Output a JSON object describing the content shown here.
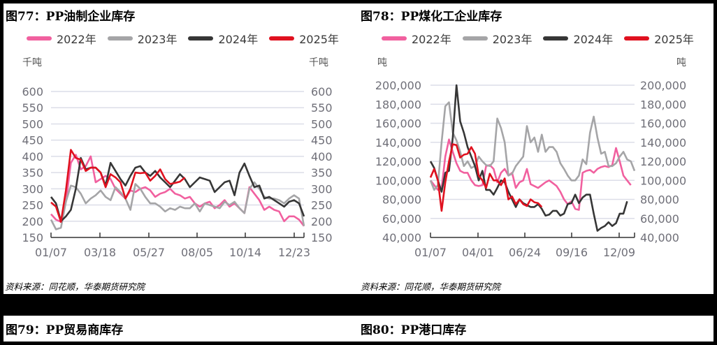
{
  "figures": [
    {
      "title": "图77：PP油制企业库存",
      "unit_left": "千吨",
      "unit_right": "千吨",
      "source": "资料来源：同花顺，华泰期货研究院"
    },
    {
      "title": "图78：PP煤化工企业库存",
      "unit_left": "吨",
      "unit_right": "吨",
      "source": "资料来源：同花顺，华泰期货研究院"
    },
    {
      "title": "图79：PP贸易商库存"
    },
    {
      "title": "图80：PP港口库存"
    }
  ],
  "legend": [
    {
      "label": "2022年",
      "color": "#f1609f"
    },
    {
      "label": "2023年",
      "color": "#a5a5a7"
    },
    {
      "label": "2024年",
      "color": "#363636"
    },
    {
      "label": "2025年",
      "color": "#e0111f"
    }
  ],
  "chart_data": [
    {
      "type": "line",
      "title": "图77：PP油制企业库存",
      "ylabel": "千吨",
      "y2label": "千吨",
      "ylim": [
        150,
        600
      ],
      "yticks": [
        150,
        200,
        250,
        300,
        350,
        400,
        450,
        500,
        550,
        600
      ],
      "xticks": [
        "01/07",
        "03/18",
        "05/27",
        "08/05",
        "10/14",
        "12/23"
      ],
      "grid": true,
      "legend_position": "top",
      "series": [
        {
          "name": "2022年",
          "color": "#f1609f",
          "values": [
            222,
            205,
            198,
            260,
            380,
            405,
            360,
            370,
            400,
            320,
            330,
            340,
            330,
            300,
            285,
            270,
            295,
            290,
            300,
            305,
            295,
            275,
            285,
            290,
            300,
            285,
            280,
            270,
            275,
            255,
            245,
            255,
            260,
            240,
            250,
            265,
            245,
            255,
            240,
            225,
            305,
            285,
            265,
            235,
            245,
            235,
            230,
            200,
            215,
            215,
            205,
            185
          ]
        },
        {
          "name": "2023年",
          "color": "#a5a5a7",
          "values": [
            205,
            175,
            180,
            260,
            310,
            305,
            285,
            255,
            270,
            280,
            295,
            275,
            265,
            305,
            290,
            270,
            235,
            315,
            300,
            275,
            255,
            255,
            245,
            230,
            240,
            235,
            245,
            240,
            240,
            255,
            230,
            255,
            250,
            245,
            240,
            260,
            250,
            260,
            240,
            225,
            300,
            320,
            300,
            275,
            270,
            270,
            265,
            255,
            270,
            280,
            270,
            185
          ]
        },
        {
          "name": "2024年",
          "color": "#363636",
          "values": [
            275,
            255,
            200,
            215,
            235,
            300,
            395,
            360,
            365,
            365,
            350,
            310,
            380,
            355,
            330,
            310,
            340,
            365,
            370,
            350,
            340,
            355,
            335,
            320,
            305,
            325,
            345,
            330,
            305,
            320,
            335,
            330,
            325,
            290,
            305,
            320,
            325,
            280,
            350,
            378,
            340,
            305,
            310,
            270,
            275,
            265,
            255,
            245,
            260,
            265,
            255,
            215
          ]
        },
        {
          "name": "2025年",
          "color": "#e0111f",
          "values": [
            258,
            245,
            198,
            295,
            420,
            395,
            390,
            355,
            365,
            365,
            350,
            305,
            345,
            335,
            320,
            270,
            300,
            350,
            348,
            350,
            325,
            340,
            360,
            330,
            315,
            318,
            322,
            335
          ]
        }
      ]
    },
    {
      "type": "line",
      "title": "图78：PP煤化工企业库存",
      "ylabel": "吨",
      "y2label": "吨",
      "ylim": [
        40000,
        200000
      ],
      "yticks": [
        40000,
        60000,
        80000,
        100000,
        120000,
        140000,
        160000,
        180000,
        200000
      ],
      "xticks": [
        "01/07",
        "04/01",
        "06/24",
        "09/16",
        "12/09"
      ],
      "grid": true,
      "legend_position": "top",
      "series": [
        {
          "name": "2022年",
          "color": "#f1609f",
          "values": [
            100,
            95,
            90,
            92,
            125,
            143,
            130,
            118,
            110,
            108,
            108,
            100,
            95,
            94,
            95,
            115,
            116,
            112,
            98,
            108,
            112,
            105,
            108,
            92,
            98,
            100,
            112,
            96,
            94,
            92,
            95,
            98,
            100,
            97,
            94,
            88,
            80,
            75,
            78,
            70,
            69,
            108,
            110,
            111,
            108,
            112,
            114,
            115,
            114,
            116,
            134,
            120,
            105,
            100,
            95
          ]
        },
        {
          "name": "2023年",
          "color": "#a5a5a7",
          "values": [
            100,
            90,
            95,
            140,
            178,
            182,
            150,
            142,
            130,
            115,
            120,
            113,
            115,
            125,
            120,
            116,
            115,
            120,
            165,
            155,
            140,
            105,
            107,
            115,
            120,
            125,
            157,
            140,
            145,
            130,
            148,
            130,
            135,
            135,
            130,
            118,
            112,
            105,
            100,
            100,
            105,
            122,
            117,
            150,
            167,
            145,
            128,
            130,
            115,
            115,
            118,
            125,
            130,
            122,
            120,
            110
          ]
        },
        {
          "name": "2024年",
          "color": "#363636",
          "values": [
            120,
            113,
            100,
            88,
            108,
            110,
            145,
            200,
            162,
            150,
            135,
            125,
            115,
            100,
            110,
            90,
            90,
            85,
            92,
            100,
            98,
            88,
            80,
            72,
            80,
            76,
            74,
            72,
            72,
            75,
            70,
            63,
            64,
            68,
            68,
            63,
            65,
            75,
            76,
            85,
            76,
            82,
            85,
            85,
            65,
            47,
            50,
            52,
            56,
            52,
            55,
            65,
            65,
            78
          ]
        },
        {
          "name": "2025年",
          "color": "#e0111f",
          "values": [
            103,
            112,
            100,
            68,
            98,
            120,
            138,
            137,
            124,
            127,
            128,
            135,
            128,
            105,
            100,
            92,
            107,
            100,
            100,
            95,
            102,
            80,
            83,
            75,
            80,
            75,
            73,
            80,
            77,
            76,
            72
          ]
        }
      ]
    }
  ]
}
